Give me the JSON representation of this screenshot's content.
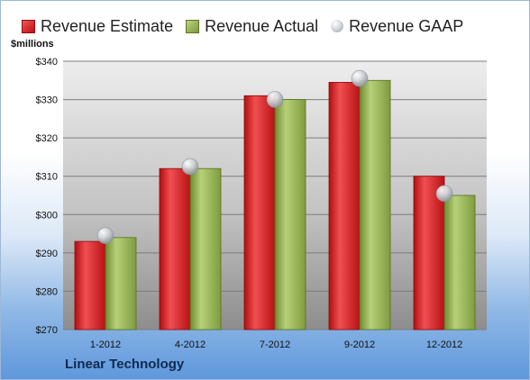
{
  "legend": {
    "estimate": "Revenue Estimate",
    "actual": "Revenue Actual",
    "gaap": "Revenue GAAP"
  },
  "unit_label": "$millions",
  "company": "Linear Technology",
  "colors": {
    "estimate": "#d21f22",
    "actual": "#9bb65b",
    "gaap": "#c9ccd2"
  },
  "chart_data": {
    "type": "bar",
    "categories": [
      "1-2012",
      "4-2012",
      "7-2012",
      "9-2012",
      "12-2012"
    ],
    "series": [
      {
        "name": "Revenue Estimate",
        "values": [
          293,
          312,
          331,
          334.5,
          310
        ]
      },
      {
        "name": "Revenue Actual",
        "values": [
          294,
          312,
          330,
          335,
          305
        ]
      },
      {
        "name": "Revenue GAAP",
        "values": [
          294.5,
          312.5,
          330,
          335.5,
          305.5
        ],
        "marker": "sphere"
      }
    ],
    "ylabel": "$millions",
    "ylim": [
      270,
      340
    ],
    "yticks": [
      "$270",
      "$280",
      "$290",
      "$300",
      "$310",
      "$320",
      "$330",
      "$340"
    ],
    "grid": true,
    "legend_position": "top"
  }
}
